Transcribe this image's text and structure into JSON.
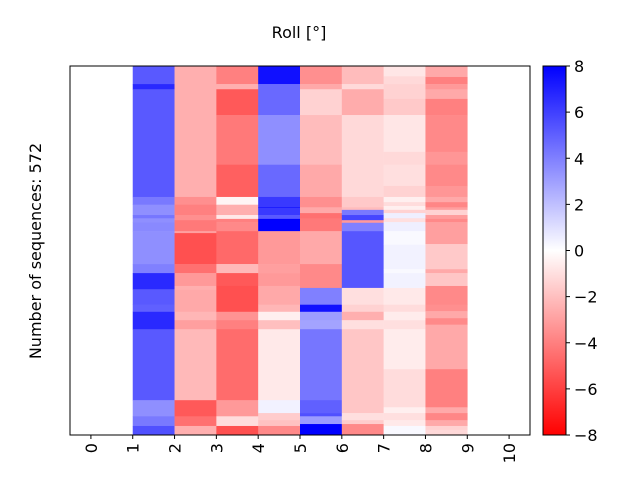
{
  "chart_data": {
    "type": "heatmap",
    "title": "Roll [°]",
    "xlabel": "",
    "ylabel": "Number of sequences: 572",
    "x_ticks": [
      "0",
      "1",
      "2",
      "3",
      "4",
      "5",
      "6",
      "7",
      "8",
      "9",
      "10"
    ],
    "xlim": [
      -0.5,
      10.5
    ],
    "n_rows": 572,
    "colormap": "bwr (blue = positive, red = negative)",
    "colorbar": {
      "range": [
        -8,
        8
      ],
      "ticks": [
        "8",
        "6",
        "4",
        "2",
        "0",
        "-2",
        "-4",
        "-6",
        "-8"
      ],
      "colors": {
        "max": "#0000ff",
        "mid": "#ffffff",
        "min": "#ff0000"
      }
    },
    "columns_note": "each column: list of [end_row, value] segments starting from row 0 at top",
    "columns": [
      {
        "x": 1,
        "segments": [
          [
            28,
            5.2
          ],
          [
            36,
            6.7
          ],
          [
            203,
            5.2
          ],
          [
            215,
            4.2
          ],
          [
            231,
            3.5
          ],
          [
            236,
            4.3
          ],
          [
            242,
            3.5
          ],
          [
            256,
            3.7
          ],
          [
            307,
            3.5
          ],
          [
            321,
            4.0
          ],
          [
            346,
            6.7
          ],
          [
            370,
            5.2
          ],
          [
            381,
            5.0
          ],
          [
            408,
            6.7
          ],
          [
            518,
            5.2
          ],
          [
            543,
            3.5
          ],
          [
            558,
            4.2
          ],
          [
            572,
            5.5
          ]
        ]
      },
      {
        "x": 2,
        "segments": [
          [
            203,
            -2.5
          ],
          [
            215,
            -3.5
          ],
          [
            231,
            -4
          ],
          [
            239,
            -3.5
          ],
          [
            256,
            -4.2
          ],
          [
            259,
            -3
          ],
          [
            307,
            -5.5
          ],
          [
            321,
            -4.5
          ],
          [
            341,
            -3.2
          ],
          [
            347,
            -2.5
          ],
          [
            381,
            -2.7
          ],
          [
            394,
            -2.3
          ],
          [
            408,
            -3
          ],
          [
            518,
            -2.2
          ],
          [
            543,
            -5.2
          ],
          [
            558,
            -4.5
          ],
          [
            572,
            -2.5
          ]
        ]
      },
      {
        "x": 3,
        "segments": [
          [
            28,
            -4
          ],
          [
            36,
            -2.5
          ],
          [
            76,
            -5.2
          ],
          [
            153,
            -4.2
          ],
          [
            203,
            -5
          ],
          [
            215,
            -0.3
          ],
          [
            231,
            -2.5
          ],
          [
            237,
            -0.7
          ],
          [
            242,
            -4
          ],
          [
            256,
            -3.7
          ],
          [
            307,
            -4.7
          ],
          [
            321,
            -2.2
          ],
          [
            341,
            -5.2
          ],
          [
            381,
            -5.5
          ],
          [
            394,
            -3.4
          ],
          [
            408,
            -4
          ],
          [
            518,
            -4.6
          ],
          [
            543,
            -3.2
          ],
          [
            558,
            -1.1
          ],
          [
            572,
            -5.5
          ]
        ]
      },
      {
        "x": 4,
        "segments": [
          [
            28,
            7.5
          ],
          [
            76,
            4.7
          ],
          [
            153,
            3.5
          ],
          [
            203,
            4.7
          ],
          [
            219,
            6.2
          ],
          [
            220,
            7.5
          ],
          [
            231,
            6.2
          ],
          [
            237,
            5.2
          ],
          [
            256,
            8
          ],
          [
            307,
            -3.2
          ],
          [
            321,
            -3
          ],
          [
            341,
            -3.2
          ],
          [
            370,
            -2.7
          ],
          [
            381,
            -2.3
          ],
          [
            394,
            -0.5
          ],
          [
            408,
            -2
          ],
          [
            518,
            -0.7
          ],
          [
            538,
            0.4
          ],
          [
            549,
            -1.6
          ],
          [
            558,
            -1.9
          ],
          [
            572,
            -3.7
          ]
        ]
      },
      {
        "x": 5,
        "segments": [
          [
            28,
            -3.5
          ],
          [
            36,
            -2.7
          ],
          [
            76,
            -1.4
          ],
          [
            153,
            -2.1
          ],
          [
            203,
            -2.7
          ],
          [
            219,
            -3.5
          ],
          [
            228,
            -2.7
          ],
          [
            236,
            -4.5
          ],
          [
            256,
            -4.2
          ],
          [
            307,
            -2.7
          ],
          [
            344,
            -3.7
          ],
          [
            370,
            4
          ],
          [
            381,
            7.5
          ],
          [
            394,
            3.1
          ],
          [
            408,
            2.9
          ],
          [
            518,
            4.3
          ],
          [
            538,
            5
          ],
          [
            543,
            5.5
          ],
          [
            555,
            3.1
          ],
          [
            572,
            8
          ]
        ]
      },
      {
        "x": 6,
        "segments": [
          [
            28,
            -2.1
          ],
          [
            36,
            -1.2
          ],
          [
            76,
            -2.6
          ],
          [
            203,
            -1.2
          ],
          [
            219,
            -1.7
          ],
          [
            223,
            -2.1
          ],
          [
            231,
            4.2
          ],
          [
            239,
            5.8
          ],
          [
            243,
            -3.2
          ],
          [
            256,
            4
          ],
          [
            344,
            5.3
          ],
          [
            370,
            -1
          ],
          [
            381,
            -1.4
          ],
          [
            394,
            -2.5
          ],
          [
            408,
            -1
          ],
          [
            538,
            -1.8
          ],
          [
            549,
            -1
          ],
          [
            555,
            -1.6
          ],
          [
            572,
            -3.7
          ]
        ]
      },
      {
        "x": 7,
        "segments": [
          [
            16,
            -0.8
          ],
          [
            28,
            -1.2
          ],
          [
            51,
            -1.4
          ],
          [
            76,
            -1.7
          ],
          [
            133,
            -0.8
          ],
          [
            153,
            -1.2
          ],
          [
            186,
            -1
          ],
          [
            203,
            -1.4
          ],
          [
            211,
            -0.5
          ],
          [
            217,
            -1.1
          ],
          [
            223,
            -0.5
          ],
          [
            228,
            -1.4
          ],
          [
            236,
            0.5
          ],
          [
            242,
            -1
          ],
          [
            256,
            0.5
          ],
          [
            277,
            0.2
          ],
          [
            315,
            0.4
          ],
          [
            321,
            0.2
          ],
          [
            344,
            0.4
          ],
          [
            370,
            -0.7
          ],
          [
            381,
            -1.1
          ],
          [
            394,
            -0.6
          ],
          [
            408,
            -1
          ],
          [
            470,
            -0.6
          ],
          [
            529,
            -1.1
          ],
          [
            538,
            -0.5
          ],
          [
            549,
            -1
          ],
          [
            558,
            -0.7
          ],
          [
            572,
            0.2
          ]
        ]
      },
      {
        "x": 8,
        "segments": [
          [
            17,
            -2.7
          ],
          [
            28,
            -4
          ],
          [
            36,
            -3.2
          ],
          [
            51,
            -2.7
          ],
          [
            76,
            -4
          ],
          [
            133,
            -3.7
          ],
          [
            153,
            -3.3
          ],
          [
            186,
            -3.7
          ],
          [
            203,
            -3.3
          ],
          [
            211,
            -2.7
          ],
          [
            219,
            -3.8
          ],
          [
            223,
            -3
          ],
          [
            231,
            -1.4
          ],
          [
            237,
            -3.1
          ],
          [
            242,
            -3.7
          ],
          [
            276,
            -3
          ],
          [
            315,
            -1.7
          ],
          [
            321,
            -2.7
          ],
          [
            341,
            -1.8
          ],
          [
            370,
            -3.7
          ],
          [
            380,
            -3.5
          ],
          [
            391,
            -2.7
          ],
          [
            401,
            -3.7
          ],
          [
            470,
            -2.7
          ],
          [
            529,
            -4
          ],
          [
            538,
            -2.7
          ],
          [
            549,
            -3.8
          ],
          [
            558,
            -2.7
          ],
          [
            564,
            -1.4
          ],
          [
            572,
            -1.2
          ]
        ]
      }
    ]
  }
}
